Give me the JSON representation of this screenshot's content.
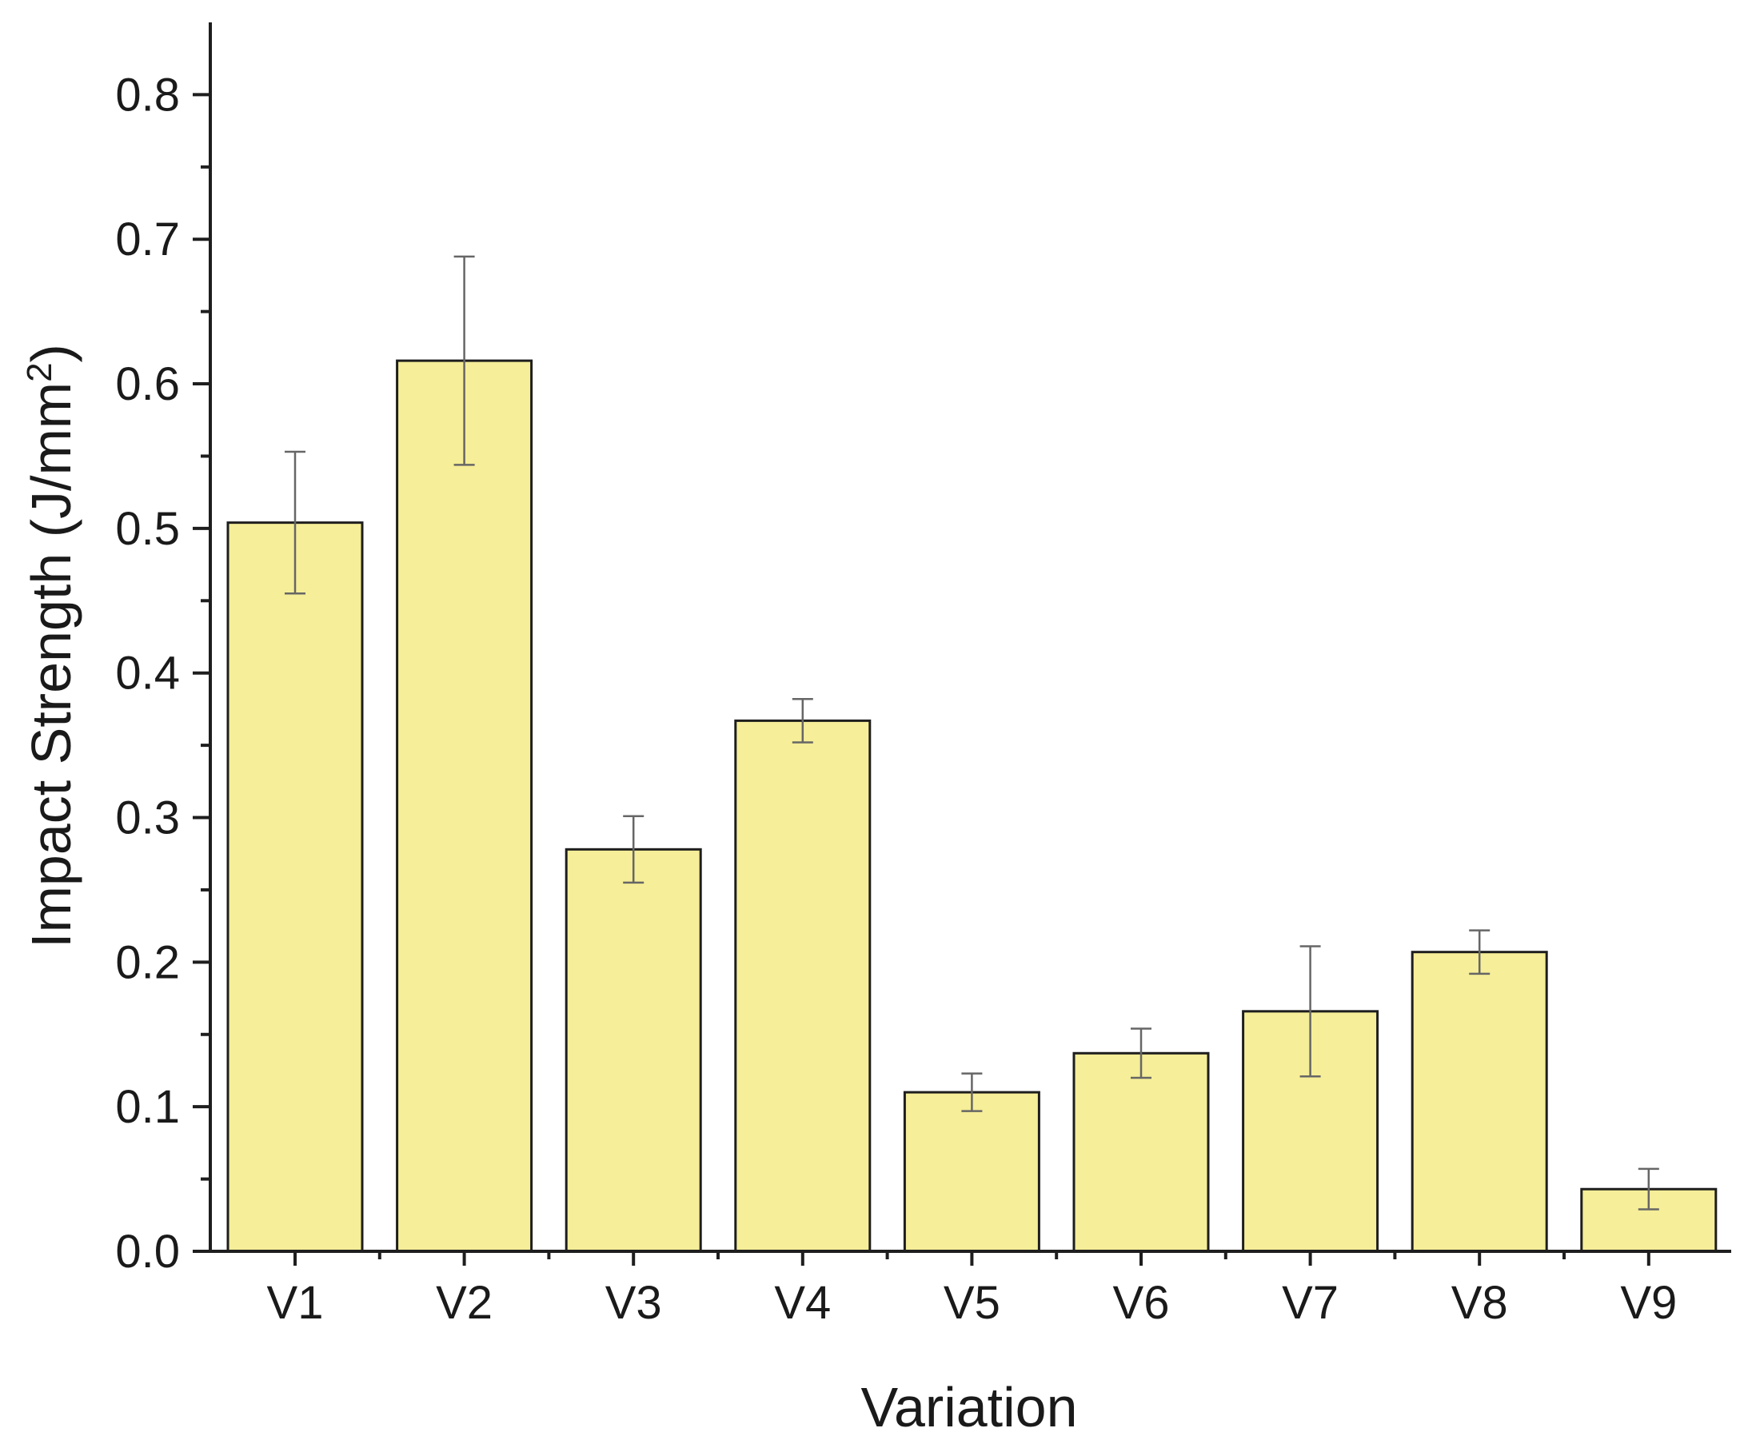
{
  "chart_data": {
    "type": "bar",
    "xlabel": "Variation",
    "ylabel": "Impact Strength (J/mm",
    "ylabel_superscript": "2",
    "ylabel_close": ")",
    "ylim": [
      0,
      0.85
    ],
    "yticks": [
      0.0,
      0.1,
      0.2,
      0.3,
      0.4,
      0.5,
      0.6,
      0.7,
      0.8
    ],
    "ytick_labels": [
      "0.0",
      "0.1",
      "0.2",
      "0.3",
      "0.4",
      "0.5",
      "0.6",
      "0.7",
      "0.8"
    ],
    "categories": [
      "V1",
      "V2",
      "V3",
      "V4",
      "V5",
      "V6",
      "V7",
      "V8",
      "V9"
    ],
    "values": [
      0.504,
      0.616,
      0.278,
      0.367,
      0.11,
      0.137,
      0.166,
      0.207,
      0.043
    ],
    "errors": [
      0.049,
      0.072,
      0.023,
      0.015,
      0.013,
      0.017,
      0.045,
      0.015,
      0.014
    ],
    "grid": false,
    "legend": "none",
    "colors": {
      "bar_fill": "#f6ee98",
      "bar_edge": "#1e1e1e",
      "error_bar": "#666666",
      "axis": "#1e1e1e"
    }
  }
}
